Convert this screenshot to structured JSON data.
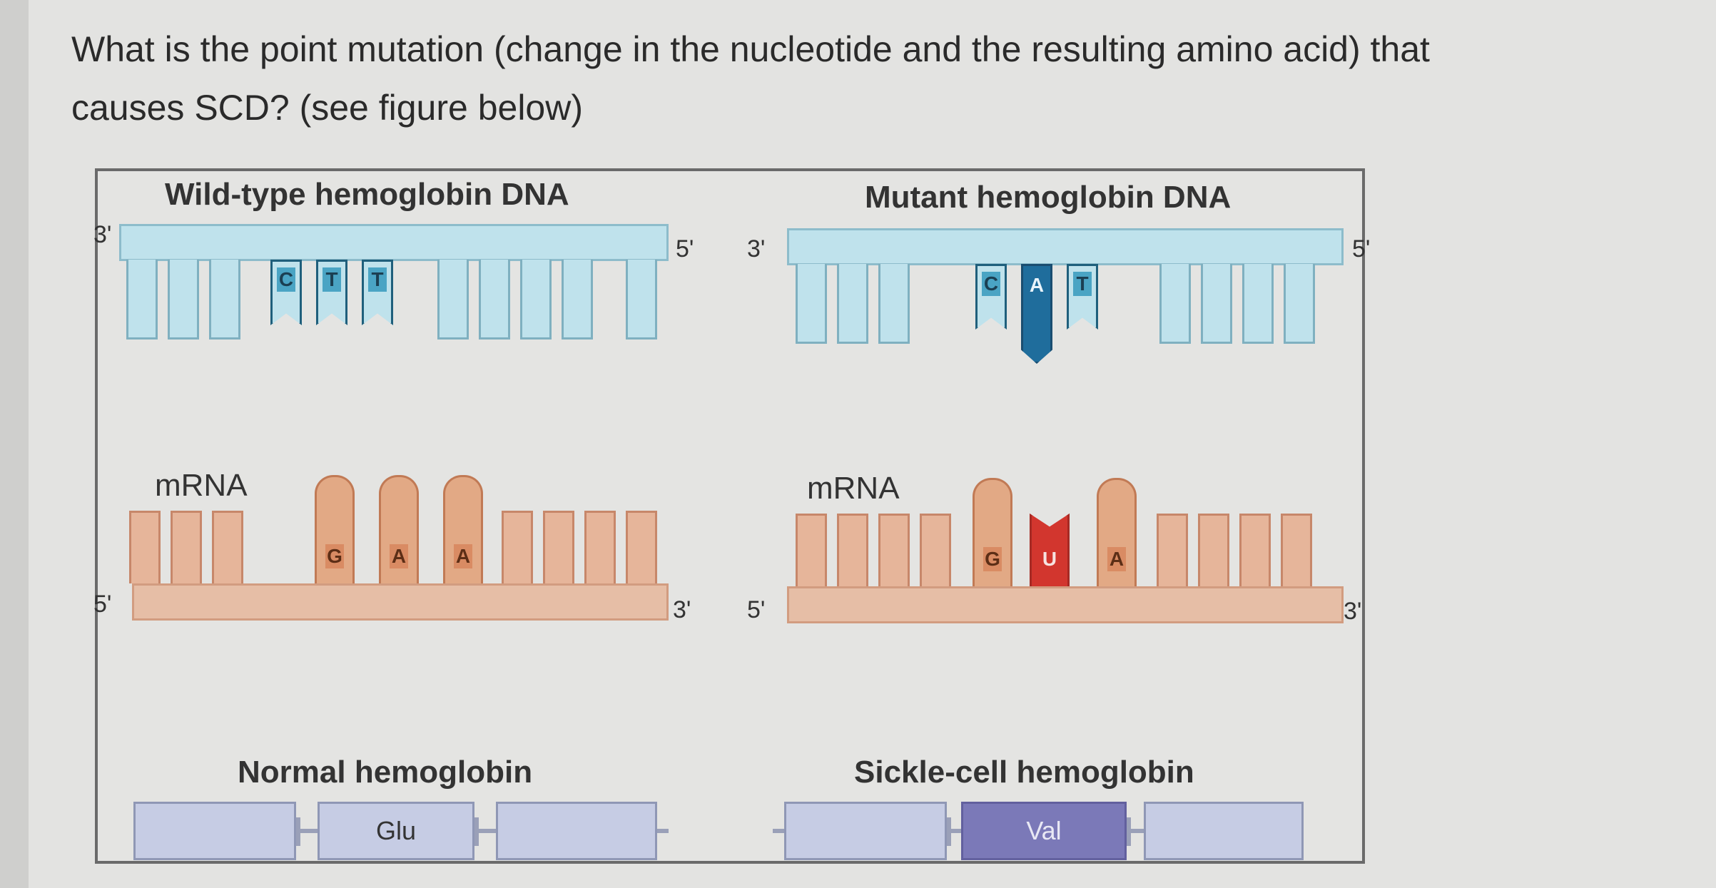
{
  "question": {
    "line1": "What is the point mutation (change in the nucleotide and the resulting amino acid) that",
    "line2": "causes SCD? (see figure below)"
  },
  "figure": {
    "wild": {
      "dna_title": "Wild-type hemoglobin DNA",
      "dna_left_end": "3'",
      "dna_right_end": "5'",
      "dna_bases": [
        "C",
        "T",
        "T"
      ],
      "mrna_label": "mRNA",
      "mrna_left_end": "5'",
      "mrna_right_end": "3'",
      "mrna_bases": [
        "G",
        "A",
        "A"
      ],
      "protein_title": "Normal hemoglobin",
      "amino_acid": "Glu"
    },
    "mutant": {
      "dna_title": "Mutant hemoglobin DNA",
      "dna_left_end": "3'",
      "dna_right_end": "5'",
      "dna_bases": [
        "C",
        "A",
        "T"
      ],
      "mrna_label": "mRNA",
      "mrna_left_end": "5'",
      "mrna_right_end": "3'",
      "mrna_bases": [
        "G",
        "U",
        "A"
      ],
      "protein_title": "Sickle-cell hemoglobin",
      "amino_acid": "Val"
    }
  },
  "colors": {
    "dna_fill": "#bfe2ec",
    "mrna_fill": "#e6bea6",
    "mutant_dna_base": "#1f6d9c",
    "mutant_mrna_base": "#d2362e",
    "protein_fill": "#c6cce4",
    "valine_fill": "#7b79b8"
  }
}
